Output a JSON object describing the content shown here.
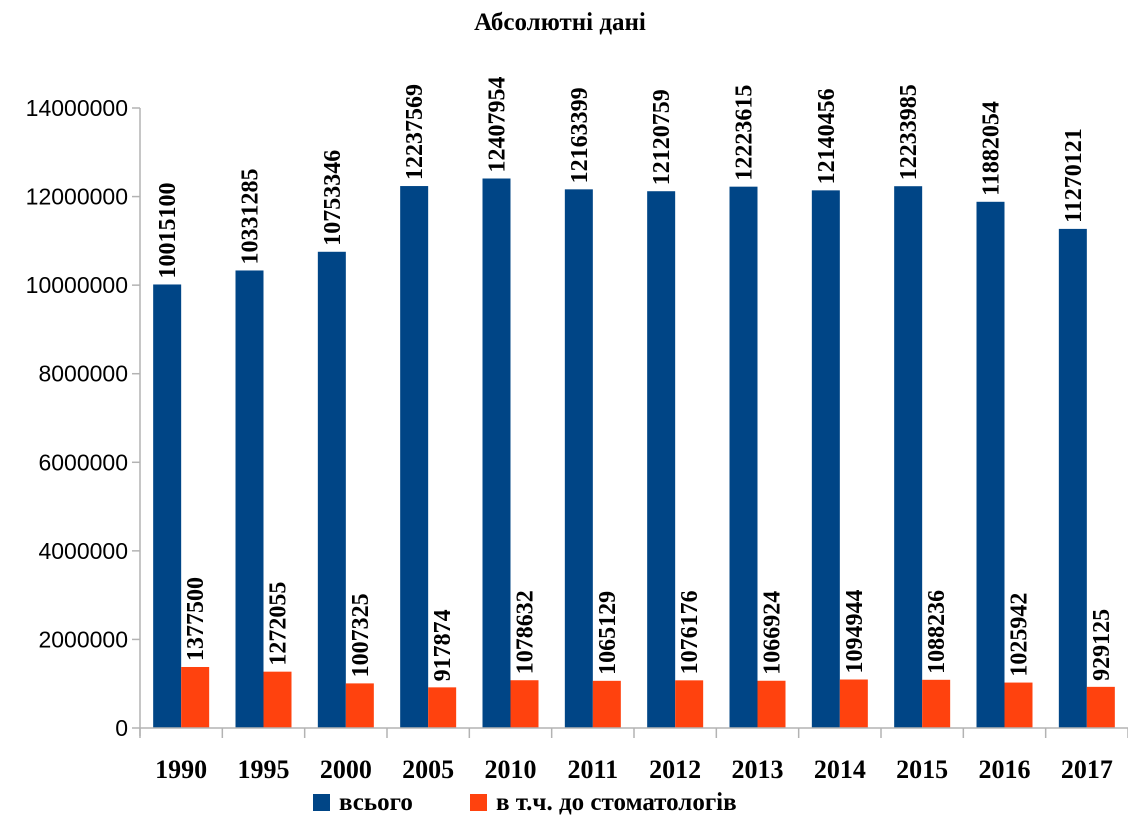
{
  "chart_data": {
    "type": "bar",
    "title": "Абсолютні дані",
    "categories": [
      "1990",
      "1995",
      "2000",
      "2005",
      "2010",
      "2011",
      "2012",
      "2013",
      "2014",
      "2015",
      "2016",
      "2017"
    ],
    "series": [
      {
        "name": "всього",
        "color": "#004586",
        "values": [
          10015100,
          10331285,
          10753346,
          12237569,
          12407954,
          12163399,
          12120759,
          12223615,
          12140456,
          12233985,
          11882054,
          11270121
        ]
      },
      {
        "name": "в т.ч. до стоматологів",
        "color": "#ff420e",
        "values": [
          1377500,
          1272055,
          1007325,
          917874,
          1078632,
          1065129,
          1076176,
          1066924,
          1094944,
          1088236,
          1025942,
          929125
        ]
      }
    ],
    "ylim": [
      0,
      14000000
    ],
    "yticks": [
      "0",
      "2000000",
      "4000000",
      "6000000",
      "8000000",
      "10000000",
      "12000000",
      "14000000"
    ],
    "grid": false,
    "legend_position": "bottom"
  }
}
